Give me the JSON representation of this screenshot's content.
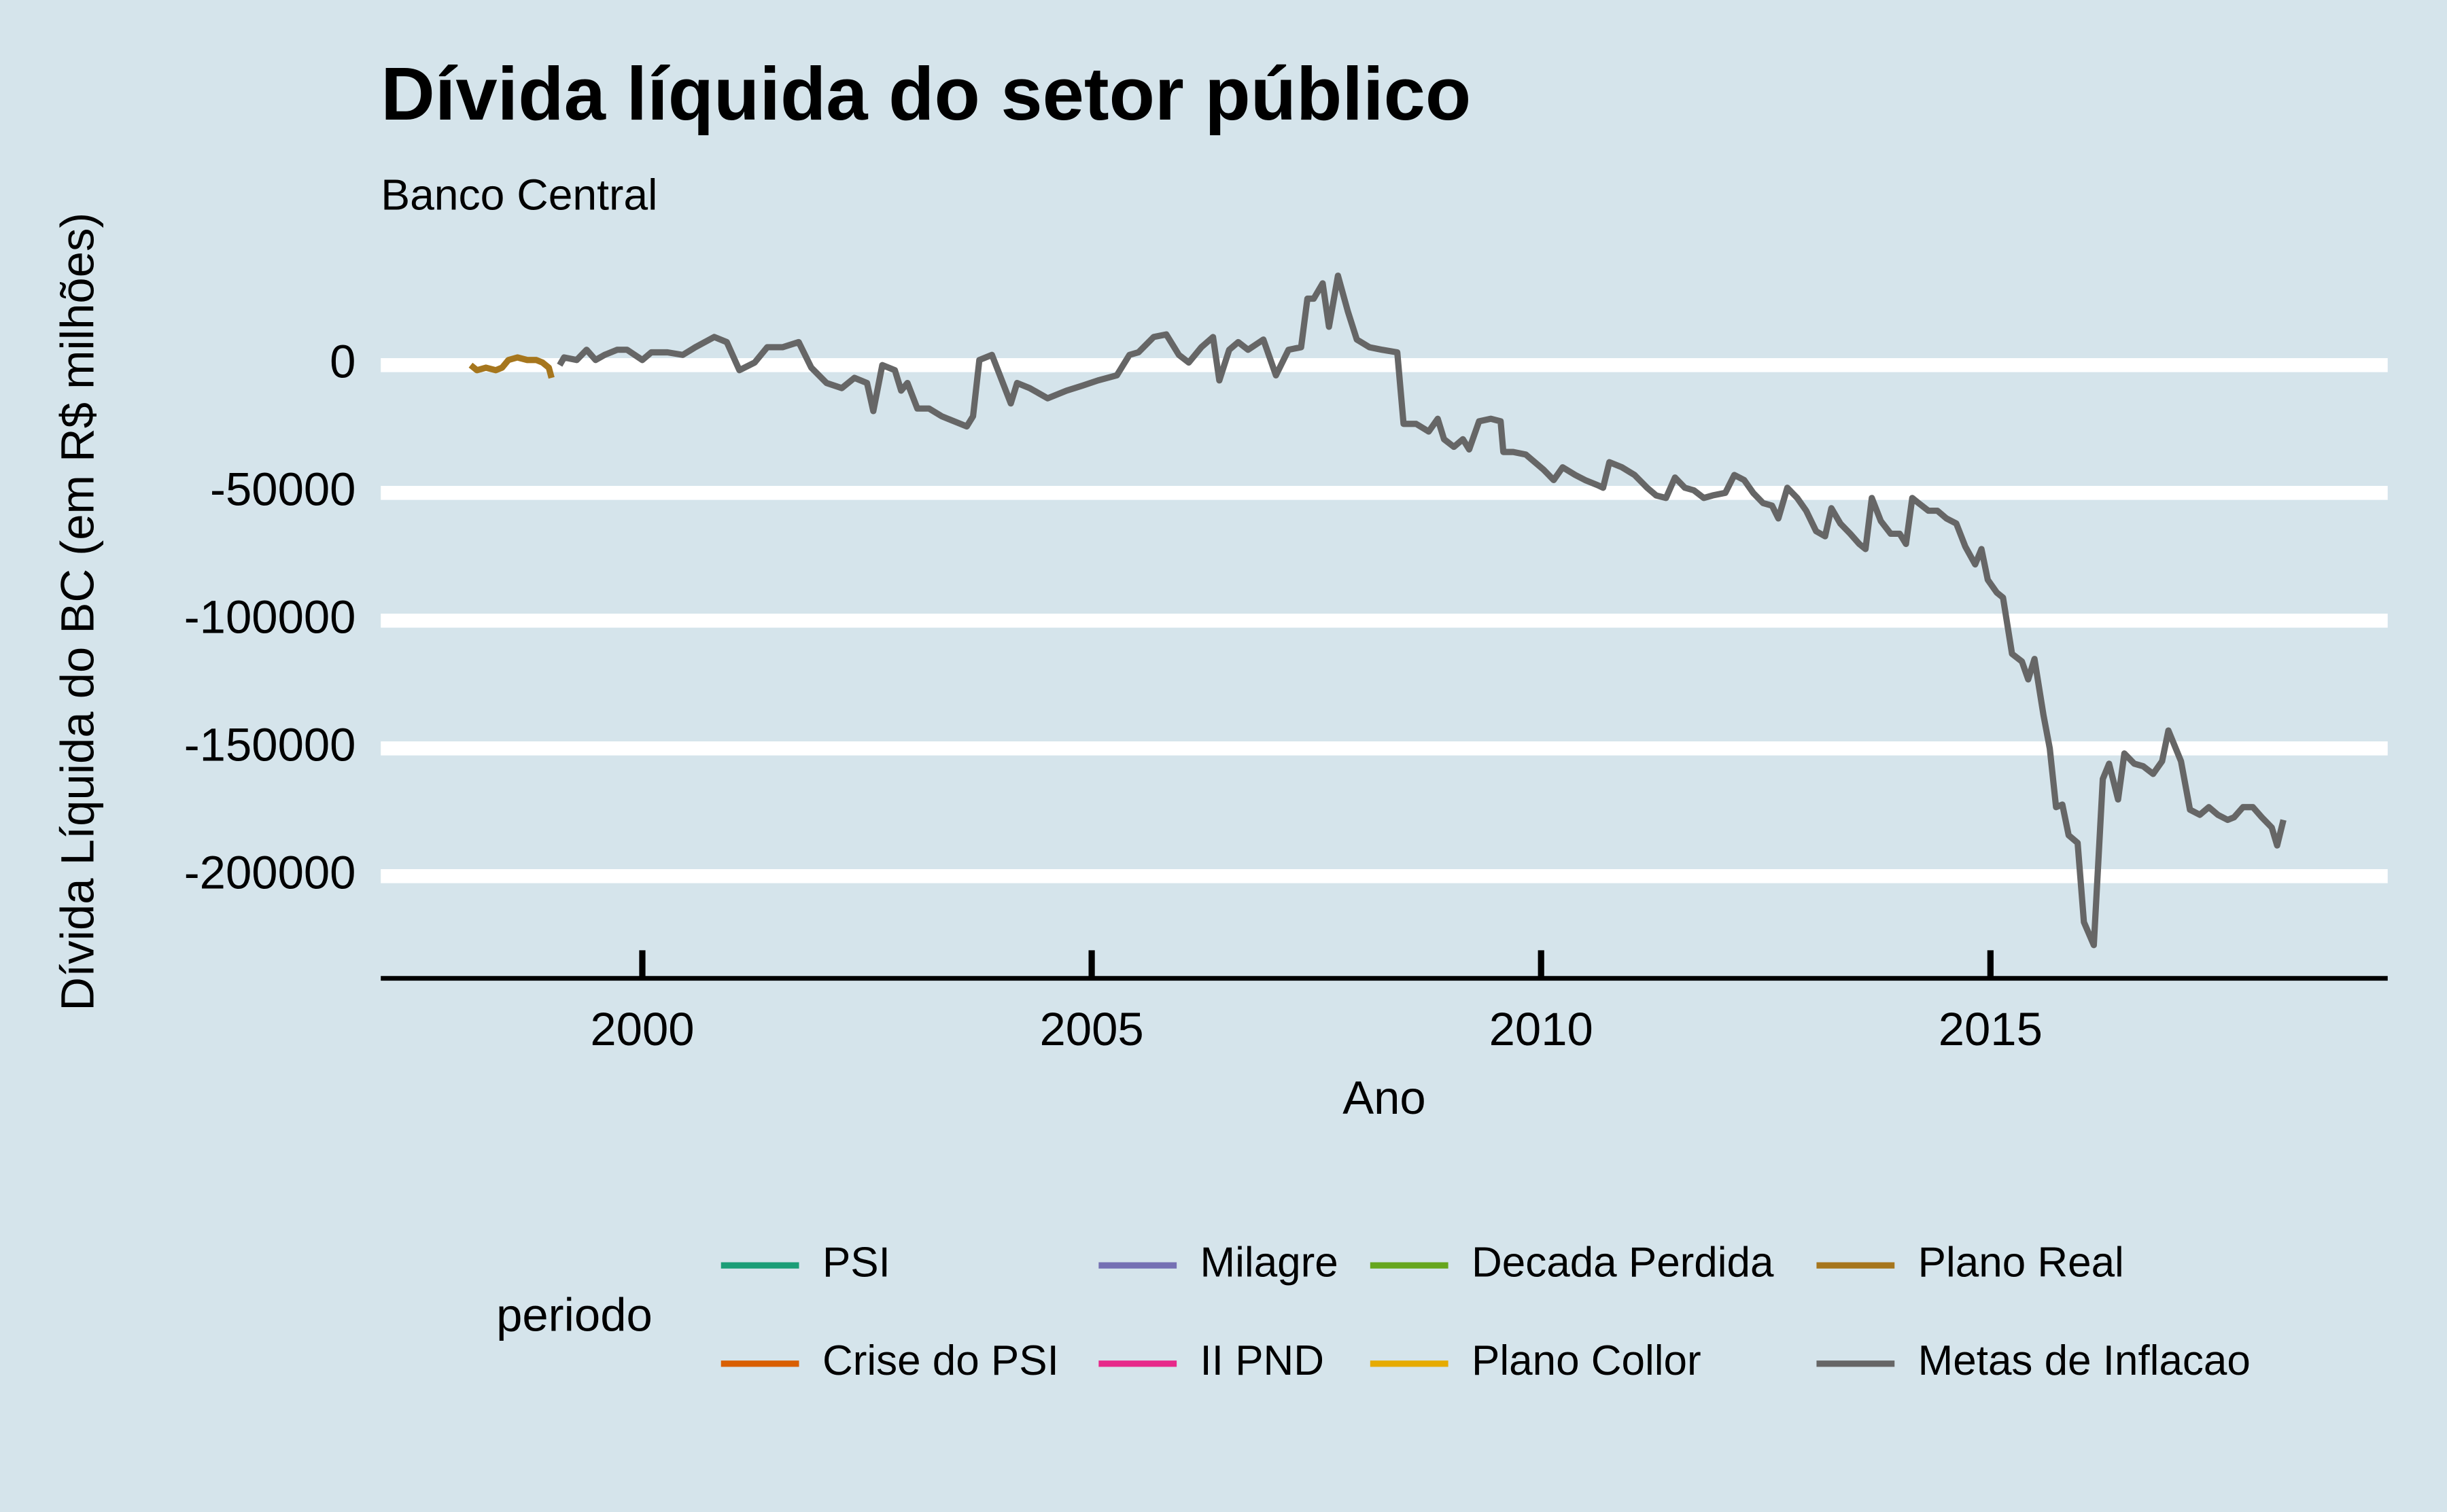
{
  "chart_data": {
    "type": "line",
    "title": "Dívida líquida do setor público",
    "subtitle": "Banco Central",
    "x_label": "Ano",
    "y_label": "Dívida Líquida do BC (em R$ milhões)",
    "legend_title": "periodo",
    "xlim": [
      1997.09,
      2019.42
    ],
    "xticks": [
      2000,
      2005,
      2010,
      2015
    ],
    "ylim": [
      -240000,
      36000
    ],
    "yticks": [
      0,
      -50000,
      -100000,
      -150000,
      -200000
    ],
    "grid": true,
    "legend_position": "bottom",
    "series": [
      {
        "name": "PSI",
        "color": "#1b9e77",
        "x": [],
        "values": []
      },
      {
        "name": "Crise do PSI",
        "color": "#d95f02",
        "x": [],
        "values": []
      },
      {
        "name": "Milagre",
        "color": "#7570b3",
        "x": [],
        "values": []
      },
      {
        "name": "II PND",
        "color": "#e7298a",
        "x": [],
        "values": []
      },
      {
        "name": "Decada Perdida",
        "color": "#66a61e",
        "x": [],
        "values": []
      },
      {
        "name": "Plano Collor",
        "color": "#e6ab02",
        "x": [],
        "values": []
      },
      {
        "name": "Plano Real",
        "color": "#a6761d",
        "x": [
          1998.09,
          1998.16,
          1998.26,
          1998.37,
          1998.44,
          1998.51,
          1998.61,
          1998.72,
          1998.82,
          1998.89,
          1998.96,
          1998.99
        ],
        "values": [
          0,
          -2000,
          -1000,
          -2000,
          -1000,
          2000,
          3000,
          2000,
          2000,
          1000,
          -1000,
          -5000
        ]
      },
      {
        "name": "Metas de Inflacao",
        "color": "#666666",
        "x": [
          1999.08,
          1999.13,
          1999.27,
          1999.38,
          1999.48,
          1999.58,
          1999.72,
          1999.83,
          2000.0,
          2000.1,
          2000.28,
          2000.45,
          2000.59,
          2000.8,
          2000.94,
          2001.08,
          2001.25,
          2001.39,
          2001.56,
          2001.74,
          2001.88,
          2002.05,
          2002.22,
          2002.36,
          2002.5,
          2002.57,
          2002.67,
          2002.81,
          2002.88,
          2002.95,
          2003.06,
          2003.19,
          2003.33,
          2003.47,
          2003.61,
          2003.68,
          2003.75,
          2003.89,
          2004.1,
          2004.17,
          2004.31,
          2004.51,
          2004.72,
          2004.9,
          2005.07,
          2005.28,
          2005.42,
          2005.52,
          2005.69,
          2005.83,
          2005.97,
          2006.08,
          2006.22,
          2006.35,
          2006.42,
          2006.53,
          2006.63,
          2006.74,
          2006.91,
          2007.05,
          2007.19,
          2007.33,
          2007.4,
          2007.47,
          2007.57,
          2007.64,
          2007.74,
          2007.85,
          2007.95,
          2008.09,
          2008.23,
          2008.4,
          2008.47,
          2008.61,
          2008.75,
          2008.85,
          2008.92,
          2009.03,
          2009.13,
          2009.2,
          2009.31,
          2009.44,
          2009.55,
          2009.58,
          2009.69,
          2009.83,
          2009.93,
          2010.03,
          2010.14,
          2010.24,
          2010.38,
          2010.49,
          2010.63,
          2010.69,
          2010.76,
          2010.9,
          2011.04,
          2011.18,
          2011.28,
          2011.39,
          2011.49,
          2011.6,
          2011.7,
          2011.81,
          2011.91,
          2012.05,
          2012.15,
          2012.26,
          2012.36,
          2012.47,
          2012.57,
          2012.64,
          2012.74,
          2012.85,
          2012.95,
          2013.06,
          2013.16,
          2013.23,
          2013.33,
          2013.44,
          2013.54,
          2013.61,
          2013.68,
          2013.78,
          2013.89,
          2013.99,
          2014.06,
          2014.13,
          2014.2,
          2014.31,
          2014.41,
          2014.51,
          2014.62,
          2014.72,
          2014.83,
          2014.9,
          2014.97,
          2015.07,
          2015.14,
          2015.24,
          2015.35,
          2015.42,
          2015.49,
          2015.59,
          2015.66,
          2015.73,
          2015.8,
          2015.87,
          2015.97,
          2016.04,
          2016.15,
          2016.25,
          2016.32,
          2016.42,
          2016.49,
          2016.6,
          2016.7,
          2016.81,
          2016.91,
          2016.98,
          2017.12,
          2017.22,
          2017.33,
          2017.43,
          2017.53,
          2017.64,
          2017.71,
          2017.81,
          2017.92,
          2018.02,
          2018.13,
          2018.19,
          2018.26
        ],
        "values": [
          0,
          3000,
          2000,
          6000,
          2000,
          4000,
          6000,
          6000,
          2000,
          5000,
          5000,
          4000,
          7000,
          11000,
          9000,
          -2000,
          1000,
          7000,
          7000,
          9000,
          -1000,
          -7000,
          -9000,
          -5000,
          -7000,
          -18000,
          0,
          -2000,
          -10000,
          -7000,
          -17000,
          -17000,
          -20000,
          -22000,
          -24000,
          -20000,
          2000,
          4000,
          -15000,
          -7000,
          -9000,
          -13000,
          -10000,
          -8000,
          -6000,
          -4000,
          4000,
          5000,
          11000,
          12000,
          4000,
          1000,
          7000,
          11000,
          -6000,
          6000,
          9000,
          6000,
          10000,
          -4000,
          6000,
          7000,
          26000,
          26000,
          32000,
          15000,
          35000,
          21000,
          10000,
          7000,
          6000,
          5000,
          -23000,
          -23000,
          -26000,
          -21000,
          -29000,
          -32000,
          -29000,
          -33000,
          -22000,
          -21000,
          -22000,
          -34000,
          -34000,
          -35000,
          -38000,
          -41000,
          -45000,
          -40000,
          -43000,
          -45000,
          -47000,
          -48000,
          -38000,
          -40000,
          -43000,
          -48000,
          -51000,
          -52000,
          -44000,
          -48000,
          -49000,
          -52000,
          -51000,
          -50000,
          -43000,
          -45000,
          -50000,
          -54000,
          -55000,
          -60000,
          -48000,
          -52000,
          -57000,
          -65000,
          -67000,
          -56000,
          -62000,
          -66000,
          -70000,
          -72000,
          -52000,
          -61000,
          -66000,
          -66000,
          -70000,
          -52000,
          -54000,
          -57000,
          -57000,
          -60000,
          -62000,
          -71000,
          -78000,
          -72000,
          -84000,
          -89000,
          -91000,
          -113000,
          -116000,
          -123000,
          -115000,
          -137000,
          -150000,
          -173000,
          -172000,
          -184000,
          -187000,
          -218000,
          -227000,
          -162000,
          -156000,
          -170000,
          -152000,
          -156000,
          -157000,
          -160000,
          -155000,
          -143000,
          -155000,
          -174000,
          -176000,
          -173000,
          -176000,
          -178000,
          -177000,
          -173000,
          -173000,
          -177000,
          -181000,
          -188000,
          -178000
        ]
      }
    ]
  }
}
